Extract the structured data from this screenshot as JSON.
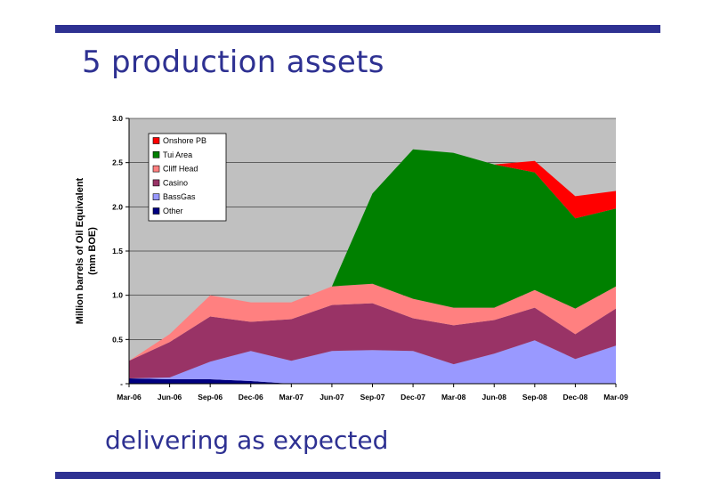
{
  "slide": {
    "title": "5 production assets",
    "subtitle": "delivering as expected",
    "accent_color": "#2e3192"
  },
  "chart_data": {
    "type": "area",
    "stacked": true,
    "ylabel_line1": "Million barrels of Oil Equivalent",
    "ylabel_line2": "(mm BOE)",
    "xlabel": "",
    "ylim": [
      0,
      3.0
    ],
    "y_ticks": [
      "-",
      "0.5",
      "1.0",
      "1.5",
      "2.0",
      "2.5",
      "3.0"
    ],
    "plot_background": "#c0c0c0",
    "grid": true,
    "legend_position": "top-left",
    "categories": [
      "Mar-06",
      "Jun-06",
      "Sep-06",
      "Dec-06",
      "Mar-07",
      "Jun-07",
      "Sep-07",
      "Dec-07",
      "Mar-08",
      "Jun-08",
      "Sep-08",
      "Dec-08",
      "Mar-09"
    ],
    "series": [
      {
        "name": "Other",
        "color": "#000080",
        "values": [
          0.06,
          0.05,
          0.05,
          0.03,
          0.0,
          0.0,
          0.0,
          0.0,
          0.0,
          0.0,
          0.0,
          0.0,
          0.0
        ]
      },
      {
        "name": "BassGas",
        "color": "#9999ff",
        "values": [
          0.0,
          0.02,
          0.2,
          0.34,
          0.26,
          0.37,
          0.38,
          0.37,
          0.22,
          0.34,
          0.49,
          0.28,
          0.43
        ]
      },
      {
        "name": "Casino",
        "color": "#993366",
        "values": [
          0.2,
          0.4,
          0.51,
          0.33,
          0.47,
          0.52,
          0.53,
          0.37,
          0.44,
          0.38,
          0.37,
          0.28,
          0.42
        ]
      },
      {
        "name": "Cliff Head",
        "color": "#ff8080",
        "values": [
          0.0,
          0.09,
          0.24,
          0.22,
          0.19,
          0.21,
          0.22,
          0.22,
          0.2,
          0.14,
          0.2,
          0.29,
          0.25
        ]
      },
      {
        "name": "Tui Area",
        "color": "#008000",
        "values": [
          0.0,
          0.0,
          0.0,
          0.0,
          0.0,
          0.0,
          1.02,
          1.69,
          1.75,
          1.62,
          1.33,
          1.02,
          0.88
        ]
      },
      {
        "name": "Onshore PB",
        "color": "#ff0000",
        "values": [
          0.0,
          0.0,
          0.0,
          0.0,
          0.0,
          0.0,
          0.0,
          0.0,
          0.0,
          0.0,
          0.13,
          0.25,
          0.2
        ]
      }
    ]
  }
}
